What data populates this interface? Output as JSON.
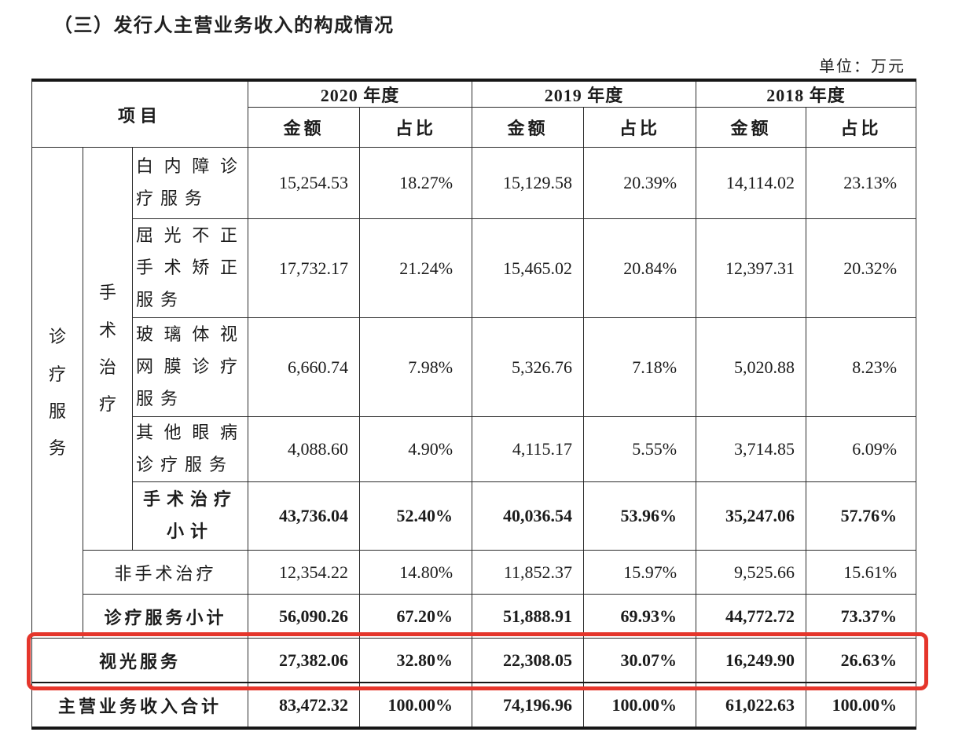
{
  "page": {
    "title": "（三）发行人主营业务收入的构成情况",
    "unit_label": "单位：万元"
  },
  "table": {
    "header": {
      "item": "项目",
      "col_amount": "金额",
      "col_ratio": "占比",
      "years": [
        "2020 年度",
        "2019 年度",
        "2018 年度"
      ]
    },
    "groups": {
      "diagnosis": "诊疗服务",
      "surgery": "手术治疗"
    },
    "rows": [
      {
        "label": "白内障诊疗服务",
        "values": [
          "15,254.53",
          "18.27%",
          "15,129.58",
          "20.39%",
          "14,114.02",
          "23.13%"
        ]
      },
      {
        "label": "屈光不正手术矫正服务",
        "values": [
          "17,732.17",
          "21.24%",
          "15,465.02",
          "20.84%",
          "12,397.31",
          "20.32%"
        ]
      },
      {
        "label": "玻璃体视网膜诊疗服务",
        "values": [
          "6,660.74",
          "7.98%",
          "5,326.76",
          "7.18%",
          "5,020.88",
          "8.23%"
        ]
      },
      {
        "label": "其他眼病诊疗服务",
        "values": [
          "4,088.60",
          "4.90%",
          "4,115.17",
          "5.55%",
          "3,714.85",
          "6.09%"
        ]
      },
      {
        "label": "手术治疗小计",
        "values": [
          "43,736.04",
          "52.40%",
          "40,036.54",
          "53.96%",
          "35,247.06",
          "57.76%"
        ]
      },
      {
        "label": "非手术治疗",
        "values": [
          "12,354.22",
          "14.80%",
          "11,852.37",
          "15.97%",
          "9,525.66",
          "15.61%"
        ]
      },
      {
        "label": "诊疗服务小计",
        "values": [
          "56,090.26",
          "67.20%",
          "51,888.91",
          "69.93%",
          "44,772.72",
          "73.37%"
        ]
      },
      {
        "label": "视光服务",
        "values": [
          "27,382.06",
          "32.80%",
          "22,308.05",
          "30.07%",
          "16,249.90",
          "26.63%"
        ]
      },
      {
        "label": "主营业务收入合计",
        "values": [
          "83,472.32",
          "100.00%",
          "74,196.96",
          "100.00%",
          "61,022.63",
          "100.00%"
        ]
      }
    ],
    "highlight_color": "#e5352b"
  }
}
